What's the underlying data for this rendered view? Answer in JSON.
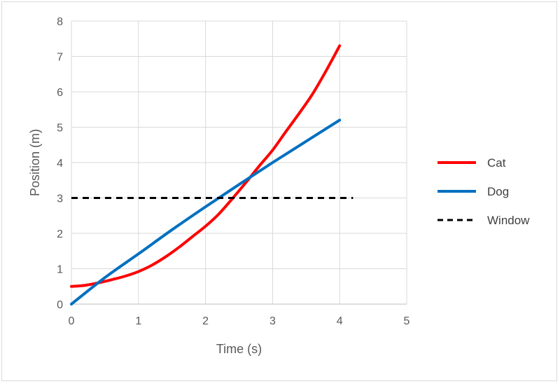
{
  "chart_data": {
    "type": "line",
    "title": "",
    "xlabel": "Time (s)",
    "ylabel": "Position (m)",
    "xlim": [
      0,
      5
    ],
    "ylim": [
      0,
      8
    ],
    "xticks": [
      "0",
      "1",
      "2",
      "3",
      "4",
      "5"
    ],
    "yticks": [
      "0",
      "1",
      "2",
      "3",
      "4",
      "5",
      "6",
      "7",
      "8"
    ],
    "grid": true,
    "legend_position": "right",
    "series": [
      {
        "name": "Cat",
        "color": "#ff0000",
        "dash": "solid",
        "x": [
          0,
          0.2,
          0.4,
          0.6,
          0.8,
          1.0,
          1.2,
          1.4,
          1.6,
          1.8,
          2.0,
          2.2,
          2.4,
          2.6,
          2.8,
          3.0,
          3.2,
          3.4,
          3.6,
          3.8,
          4.0
        ],
        "y": [
          0.5,
          0.53,
          0.6,
          0.69,
          0.79,
          0.92,
          1.1,
          1.33,
          1.6,
          1.9,
          2.2,
          2.55,
          2.98,
          3.43,
          3.9,
          4.35,
          4.88,
          5.4,
          5.95,
          6.6,
          7.3
        ]
      },
      {
        "name": "Dog",
        "color": "#0070c0",
        "dash": "solid",
        "x": [
          0,
          0.5,
          1.0,
          1.5,
          2.0,
          2.5,
          3.0,
          3.5,
          4.0
        ],
        "y": [
          0,
          0.75,
          1.42,
          2.1,
          2.75,
          3.38,
          4.0,
          4.6,
          5.2
        ]
      },
      {
        "name": "Window",
        "color": "#000000",
        "dash": "dashed",
        "x": [
          0,
          4.2
        ],
        "y": [
          3,
          3
        ]
      }
    ]
  }
}
